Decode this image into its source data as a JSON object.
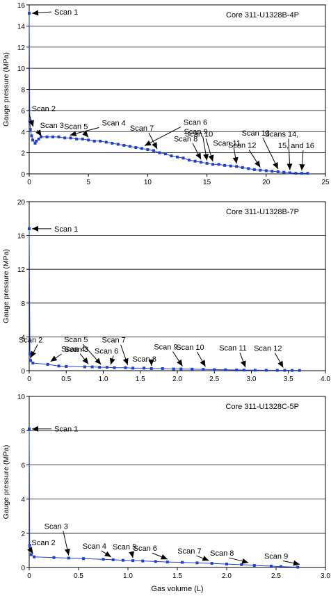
{
  "xlabel": "Gas volume (L)",
  "colors": {
    "series": "#1f3fd1",
    "grid": "#000000"
  },
  "chart_data": [
    {
      "type": "scatter",
      "title": "Core 311-U1328B-4P",
      "ylabel": "Gauge pressure (MPa)",
      "xlim": [
        0,
        25
      ],
      "ylim": [
        0,
        16
      ],
      "xticks": [
        "0",
        "5",
        "10",
        "15",
        "20",
        "25"
      ],
      "yticks": [
        "0",
        "2",
        "4",
        "6",
        "8",
        "10",
        "12",
        "14",
        "16"
      ],
      "grid": "horizontal",
      "series": [
        {
          "x": [
            0,
            0.05,
            0.1,
            0.2,
            0.3,
            0.5,
            0.6,
            0.8,
            1.0,
            1.5,
            2.0,
            2.5,
            3.0,
            3.5,
            4.0,
            4.5,
            5.0,
            5.5,
            6.0,
            6.5,
            7.0,
            7.5,
            8.0,
            8.5,
            9.0,
            9.5,
            10.0,
            10.5,
            11.0,
            11.5,
            12.0,
            12.5,
            13.0,
            13.5,
            14.0,
            14.5,
            15.0,
            15.5,
            16.0,
            16.5,
            17.0,
            17.5,
            18.0,
            18.5,
            19.0,
            19.5,
            20.0,
            20.5,
            21.0,
            21.5,
            22.0,
            22.5,
            23.0,
            23.5
          ],
          "y": [
            15.2,
            5.0,
            4.2,
            3.6,
            3.2,
            2.9,
            3.1,
            3.3,
            3.5,
            3.5,
            3.5,
            3.5,
            3.4,
            3.4,
            3.3,
            3.3,
            3.2,
            3.1,
            3.1,
            3.0,
            2.9,
            2.8,
            2.7,
            2.6,
            2.5,
            2.4,
            2.3,
            2.2,
            2.0,
            1.9,
            1.7,
            1.6,
            1.5,
            1.3,
            1.2,
            1.1,
            1.0,
            0.9,
            0.9,
            0.8,
            0.75,
            0.7,
            0.6,
            0.5,
            0.4,
            0.35,
            0.3,
            0.25,
            0.2,
            0.15,
            0.1,
            0.05,
            0.05,
            0.05
          ]
        }
      ],
      "annotations": [
        {
          "text": "Scan 1",
          "x": 0,
          "y": 15.2
        },
        {
          "text": "Scan 2",
          "x": 0.1,
          "y": 4.2
        },
        {
          "text": "Scan 3",
          "x": 0.8,
          "y": 3.3
        },
        {
          "text": "Scan 4",
          "x": 3.2,
          "y": 3.4
        },
        {
          "text": "Scan 5",
          "x": 5.0,
          "y": 3.2
        },
        {
          "text": "Scan 6",
          "x": 9.5,
          "y": 2.4
        },
        {
          "text": "Scan 7",
          "x": 10.8,
          "y": 2.1
        },
        {
          "text": "Scan 8",
          "x": 14.5,
          "y": 1.1
        },
        {
          "text": "Scan 9",
          "x": 15.0,
          "y": 1.0
        },
        {
          "text": "Scan 10",
          "x": 15.5,
          "y": 0.9
        },
        {
          "text": "Scan 11",
          "x": 17.5,
          "y": 0.7
        },
        {
          "text": "Scan 12",
          "x": 19.5,
          "y": 0.35
        },
        {
          "text": "Scan 13",
          "x": 21.0,
          "y": 0.2
        },
        {
          "text": "Scans 14,",
          "x": 22.0,
          "y": 0.1
        },
        {
          "text": "15, and 16",
          "x": 23.0,
          "y": 0.05
        }
      ]
    },
    {
      "type": "scatter",
      "title": "Core 311-U1328B-7P",
      "ylabel": "Gauge pressure (MPa)",
      "xlim": [
        0,
        4.0
      ],
      "ylim": [
        0,
        20
      ],
      "xticks": [
        "0",
        "0.5",
        "1.0",
        "1.5",
        "2.0",
        "2.5",
        "3.0",
        "3.5",
        "4.0"
      ],
      "yticks": [
        "0",
        "4",
        "8",
        "12",
        "16",
        "20"
      ],
      "grid": "horizontal",
      "series": [
        {
          "x": [
            0,
            0.01,
            0.02,
            0.05,
            0.25,
            0.4,
            0.5,
            0.75,
            0.85,
            0.95,
            1.05,
            1.15,
            1.3,
            1.4,
            1.55,
            1.65,
            1.8,
            1.95,
            2.05,
            2.2,
            2.35,
            2.5,
            2.65,
            2.8,
            2.9,
            3.05,
            3.2,
            3.35,
            3.45,
            3.55,
            3.65
          ],
          "y": [
            16.8,
            2.0,
            1.2,
            0.9,
            0.75,
            0.55,
            0.5,
            0.45,
            0.45,
            0.4,
            0.4,
            0.35,
            0.35,
            0.3,
            0.3,
            0.25,
            0.25,
            0.2,
            0.2,
            0.18,
            0.15,
            0.12,
            0.1,
            0.08,
            0.07,
            0.06,
            0.05,
            0.04,
            0.04,
            0.03,
            0.03
          ]
        }
      ],
      "annotations": [
        {
          "text": "Scan 1",
          "x": 0,
          "y": 16.8
        },
        {
          "text": "Scan 2",
          "x": 0.02,
          "y": 1.2
        },
        {
          "text": "Scan 3",
          "x": 0.25,
          "y": 0.75
        },
        {
          "text": "Scan 4",
          "x": 0.8,
          "y": 0.45
        },
        {
          "text": "Scan 5",
          "x": 0.97,
          "y": 0.4
        },
        {
          "text": "Scan 6",
          "x": 1.1,
          "y": 0.38
        },
        {
          "text": "Scan 7",
          "x": 1.33,
          "y": 0.35
        },
        {
          "text": "Scan 8",
          "x": 1.65,
          "y": 0.25
        },
        {
          "text": "Scan 9",
          "x": 2.07,
          "y": 0.2
        },
        {
          "text": "Scan 10",
          "x": 2.38,
          "y": 0.15
        },
        {
          "text": "Scan 11",
          "x": 2.92,
          "y": 0.07
        },
        {
          "text": "Scan 12",
          "x": 3.43,
          "y": 0.04
        }
      ]
    },
    {
      "type": "scatter",
      "title": "Core 311-U1328C-5P",
      "ylabel": "Gauge pressure (MPa)",
      "xlim": [
        0,
        3.0
      ],
      "ylim": [
        0,
        10
      ],
      "xticks": [
        "0",
        "0.5",
        "1.0",
        "1.5",
        "2.0",
        "2.5",
        "3.0"
      ],
      "yticks": [
        "0",
        "2",
        "4",
        "6",
        "8",
        "10"
      ],
      "grid": "horizontal",
      "series": [
        {
          "x": [
            0,
            0.005,
            0.01,
            0.02,
            0.05,
            0.25,
            0.4,
            0.55,
            0.75,
            0.85,
            0.95,
            1.05,
            1.15,
            1.28,
            1.4,
            1.55,
            1.7,
            1.85,
            2.0,
            2.15,
            2.28,
            2.45,
            2.55,
            2.72
          ],
          "y": [
            8.1,
            1.3,
            1.1,
            0.75,
            0.62,
            0.58,
            0.55,
            0.52,
            0.48,
            0.45,
            0.42,
            0.4,
            0.38,
            0.35,
            0.32,
            0.3,
            0.27,
            0.24,
            0.2,
            0.17,
            0.12,
            0.08,
            0.05,
            0.02
          ]
        }
      ],
      "annotations": [
        {
          "text": "Scan 1",
          "x": 0,
          "y": 8.1
        },
        {
          "text": "Scan 2",
          "x": 0.01,
          "y": 0.65
        },
        {
          "text": "Scan 3",
          "x": 0.4,
          "y": 0.55
        },
        {
          "text": "Scan 4",
          "x": 0.83,
          "y": 0.45
        },
        {
          "text": "Scan 5",
          "x": 1.05,
          "y": 0.4
        },
        {
          "text": "Scan 6",
          "x": 1.4,
          "y": 0.32
        },
        {
          "text": "Scan 7",
          "x": 1.82,
          "y": 0.24
        },
        {
          "text": "Scan 8",
          "x": 2.22,
          "y": 0.12
        },
        {
          "text": "Scan 9",
          "x": 2.74,
          "y": 0.02
        }
      ]
    }
  ]
}
